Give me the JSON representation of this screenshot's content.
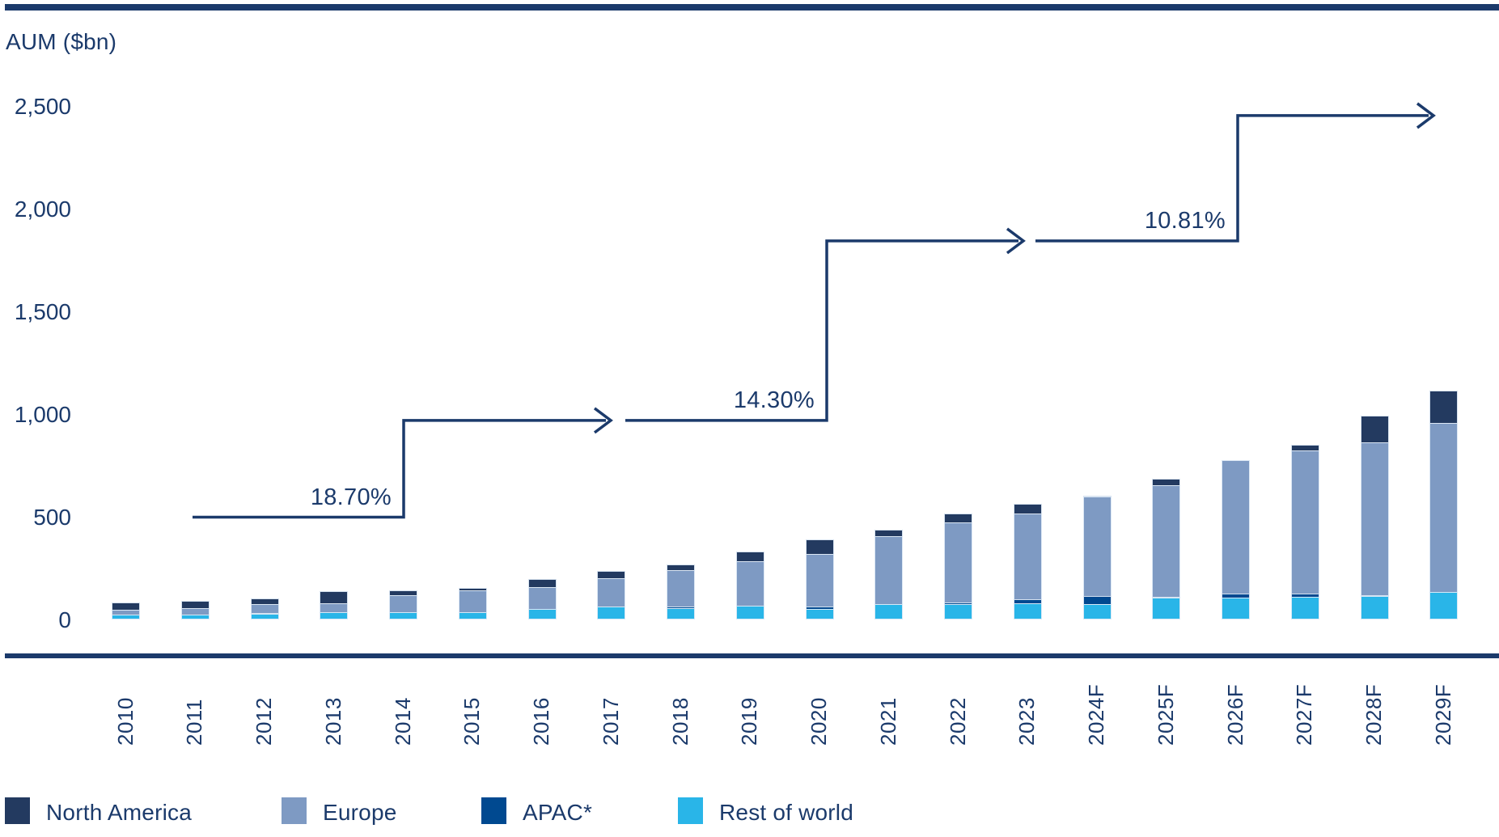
{
  "chart_data": {
    "type": "bar",
    "stacked": true,
    "title": "AUM ($bn)",
    "xlabel": "",
    "ylabel": "AUM ($bn)",
    "ylim": [
      0,
      2500
    ],
    "grid": false,
    "legend_position": "bottom",
    "categories": [
      "2010",
      "2011",
      "2012",
      "2013",
      "2014",
      "2015",
      "2016",
      "2017",
      "2018",
      "2019",
      "2020",
      "2021",
      "2022",
      "2023",
      "2024F",
      "2025F",
      "2026F",
      "2027F",
      "2028F",
      "2029F"
    ],
    "y_ticks": [
      {
        "value": 2500,
        "label": "2,500"
      },
      {
        "value": 2000,
        "label": "2,000"
      },
      {
        "value": 1500,
        "label": "1,500"
      },
      {
        "value": 1000,
        "label": "1,000"
      },
      {
        "value": 500,
        "label": "500"
      },
      {
        "value": 0,
        "label": "0"
      }
    ],
    "series": [
      {
        "name": "North America",
        "color": "#233A60",
        "values": [
          85,
          94,
          104,
          140,
          144,
          157,
          197,
          239,
          269,
          334,
          391,
          439,
          518,
          566,
          606,
          688,
          767,
          852,
          994,
          1115
        ]
      },
      {
        "name": "Europe",
        "color": "#7E9AC3",
        "values": [
          50,
          57,
          76,
          80,
          122,
          145,
          160,
          204,
          243,
          286,
          320,
          407,
          476,
          516,
          601,
          654,
          777,
          823,
          866,
          958
        ]
      },
      {
        "name": "APAC*",
        "color": "#004990",
        "values": [
          21,
          26,
          33,
          25,
          35,
          39,
          48,
          62,
          66,
          68,
          63,
          76,
          84,
          101,
          118,
          112,
          126,
          129,
          121,
          129
        ]
      },
      {
        "name": "Rest of world",
        "color": "#29B5E8",
        "values": [
          24,
          26,
          29,
          37,
          39,
          39,
          54,
          63,
          59,
          70,
          52,
          77,
          76,
          79,
          75,
          108,
          108,
          111,
          115,
          134
        ]
      }
    ],
    "annotations": [
      {
        "label": "18.70%",
        "x_start": 238,
        "x_step": 499,
        "x_tip": 755,
        "level_low": 500,
        "level_high": 971
      },
      {
        "label": "14.30%",
        "x_start": 773,
        "x_step": 1022,
        "x_tip": 1265,
        "level_low": 971,
        "level_high": 1845
      },
      {
        "label": "10.81%",
        "x_start": 1280,
        "x_step": 1530,
        "x_tip": 1772,
        "level_low": 1845,
        "level_high": 2455
      }
    ],
    "colors": {
      "text_navy": "#1B3A6B",
      "line_navy": "#1B3A6B",
      "background": "#FFFFFF"
    }
  }
}
